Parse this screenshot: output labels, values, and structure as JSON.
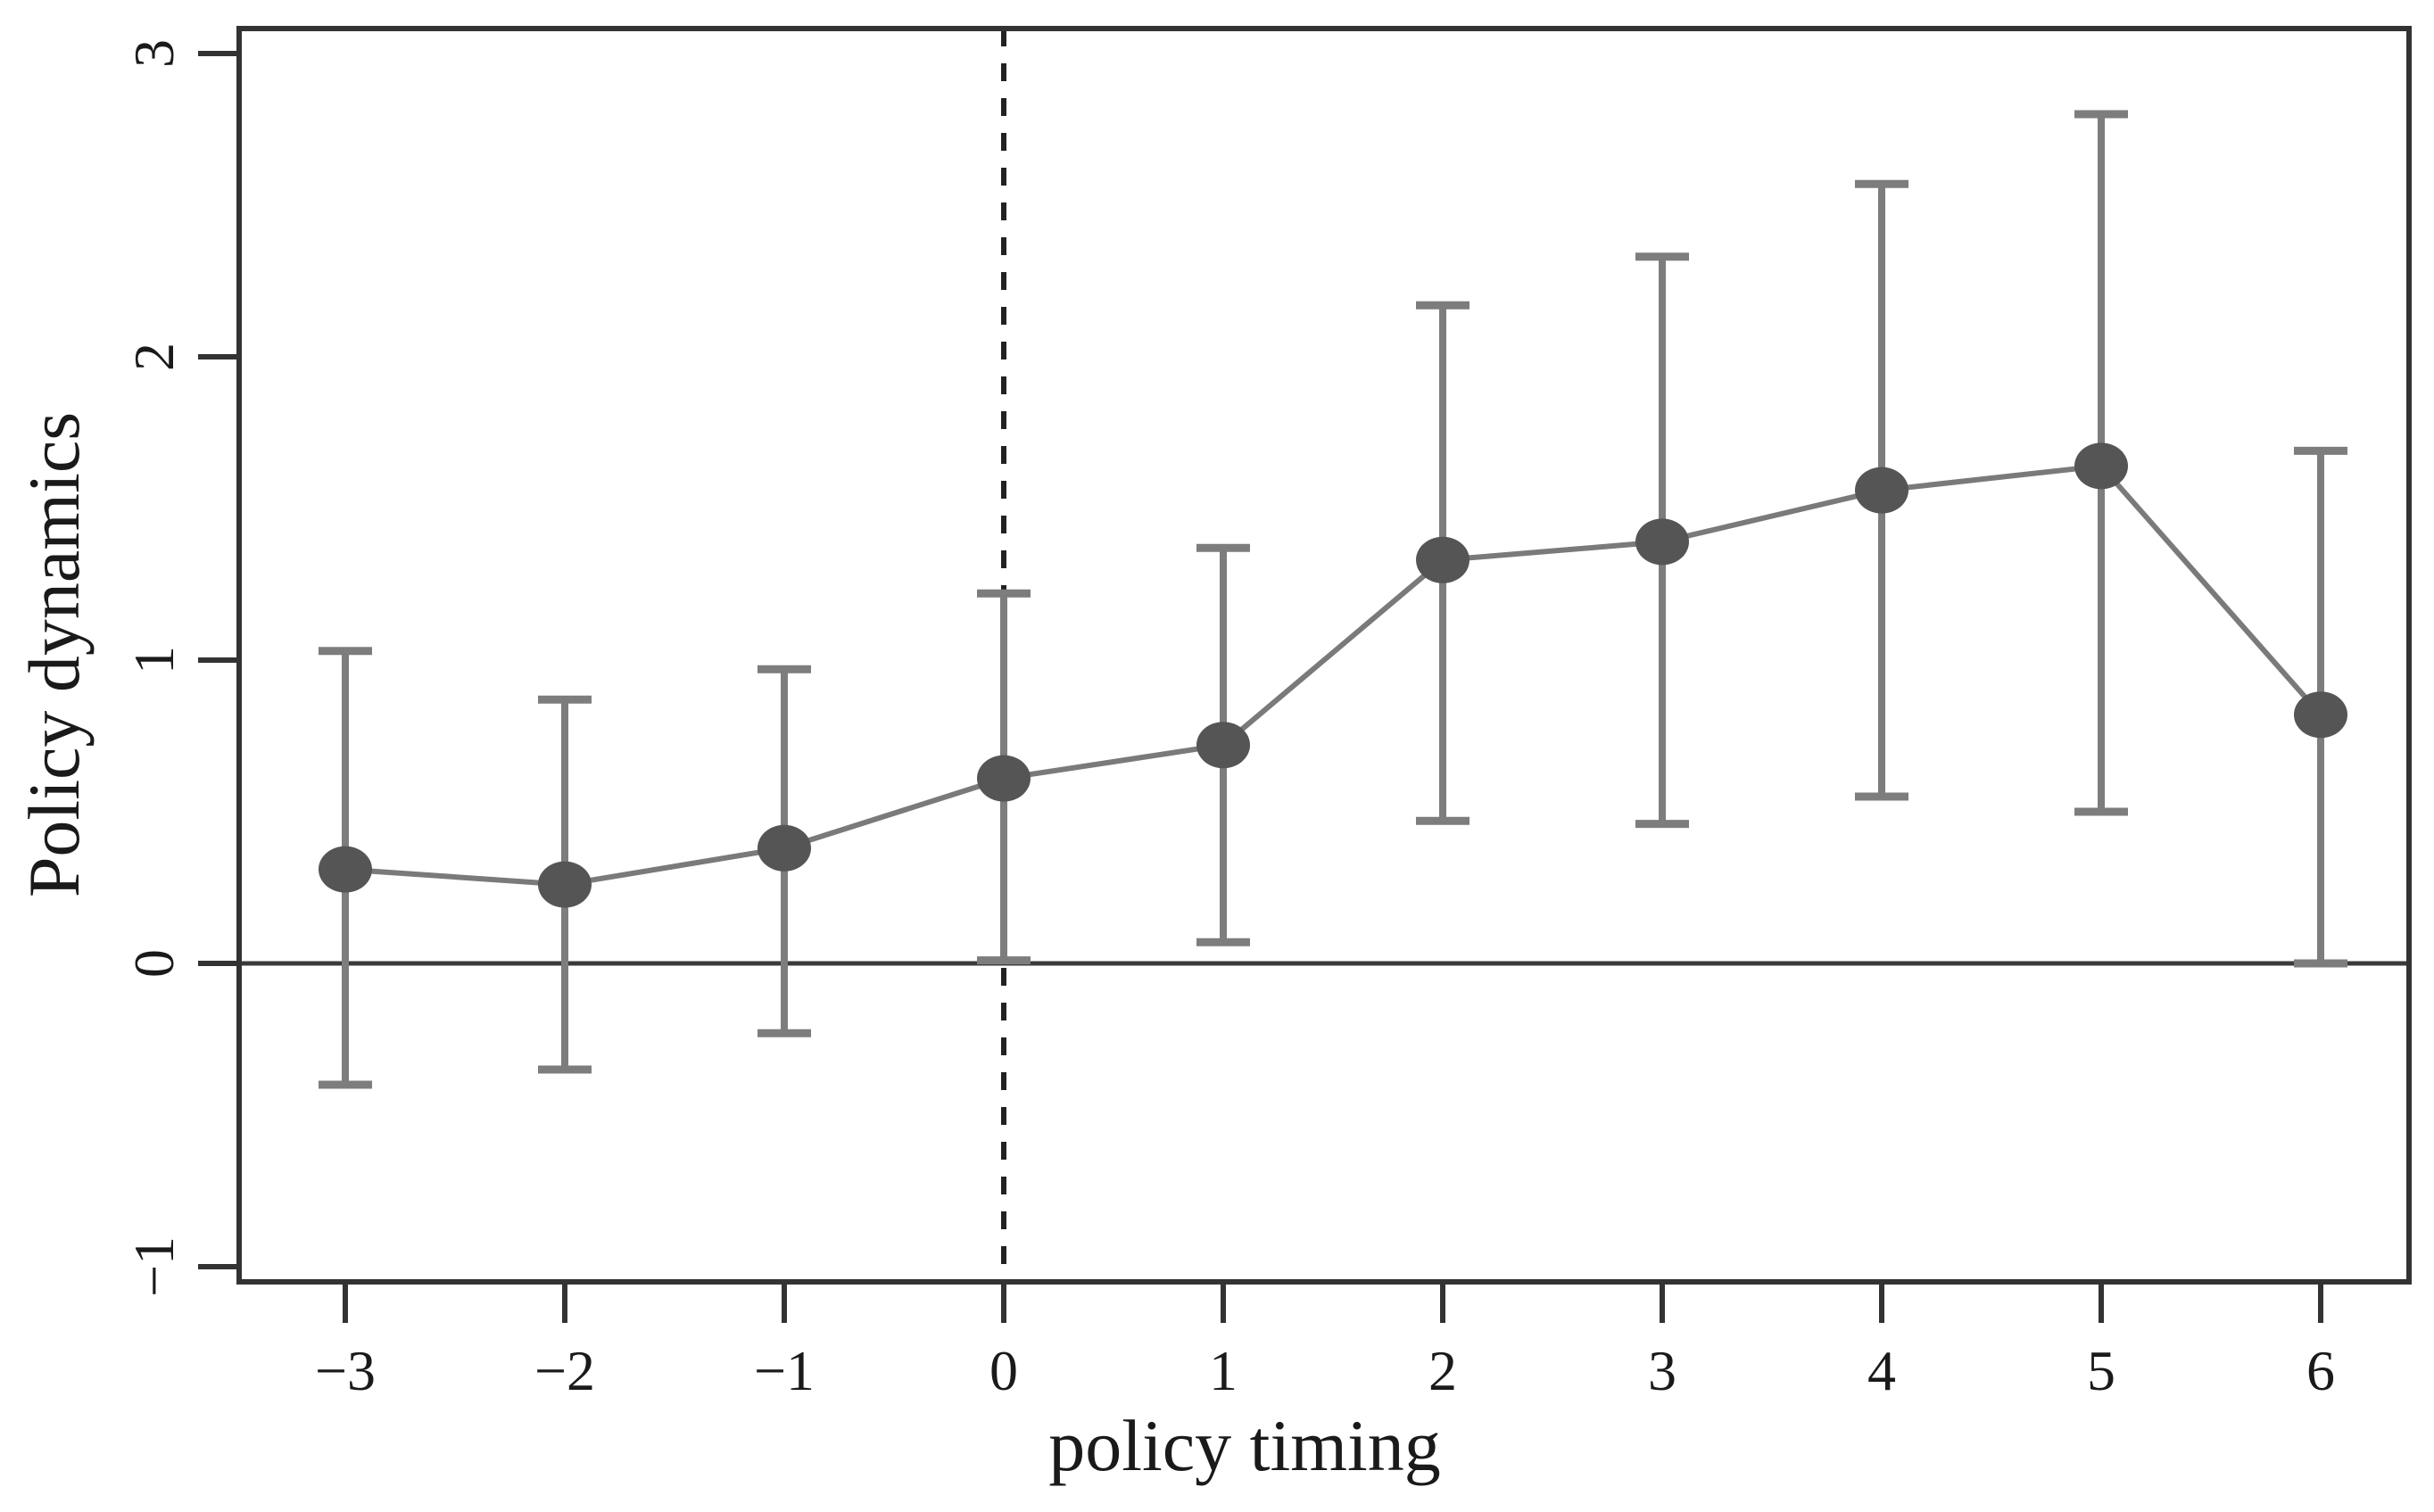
{
  "chart_data": {
    "type": "line",
    "title": "",
    "xlabel": "policy timing",
    "ylabel": "Policy dynamics",
    "x": [
      -3,
      -2,
      -1,
      0,
      1,
      2,
      3,
      4,
      5,
      6
    ],
    "series": [
      {
        "name": "point estimate",
        "values": [
          0.31,
          0.26,
          0.38,
          0.61,
          0.72,
          1.33,
          1.39,
          1.56,
          1.64,
          0.82
        ]
      },
      {
        "name": "ci lower",
        "values": [
          -0.4,
          -0.35,
          -0.23,
          0.01,
          0.07,
          0.47,
          0.46,
          0.55,
          0.5,
          0.0
        ]
      },
      {
        "name": "ci upper",
        "values": [
          1.03,
          0.87,
          0.97,
          1.22,
          1.37,
          2.17,
          2.33,
          2.57,
          2.8,
          1.69
        ]
      }
    ],
    "xticks": [
      -3,
      -2,
      -1,
      0,
      1,
      2,
      3,
      4,
      5,
      6
    ],
    "xtick_labels": [
      "−3",
      "−2",
      "−1",
      "0",
      "1",
      "2",
      "3",
      "4",
      "5",
      "6"
    ],
    "yticks": [
      -1,
      0,
      1,
      2,
      3
    ],
    "ytick_labels": [
      "−1",
      "0",
      "1",
      "2",
      "3"
    ],
    "xlim": [
      -3.48,
      6.4
    ],
    "ylim": [
      -1.05,
      3.08
    ],
    "grid": false,
    "legend": null,
    "reference_lines": {
      "horizontal_solid_y": 0,
      "vertical_dashed_x": 0
    },
    "marker": "filled-circle",
    "error_bar_caps": true,
    "colors": {
      "series_line": "#7a7a7a",
      "error_bar": "#7d7d7d",
      "marker_fill": "#555555",
      "axis_frame": "#333333",
      "zero_line": "#3a3a3a",
      "dashed_line": "#222222",
      "text": "#1a1a1a",
      "background": "#ffffff"
    }
  }
}
